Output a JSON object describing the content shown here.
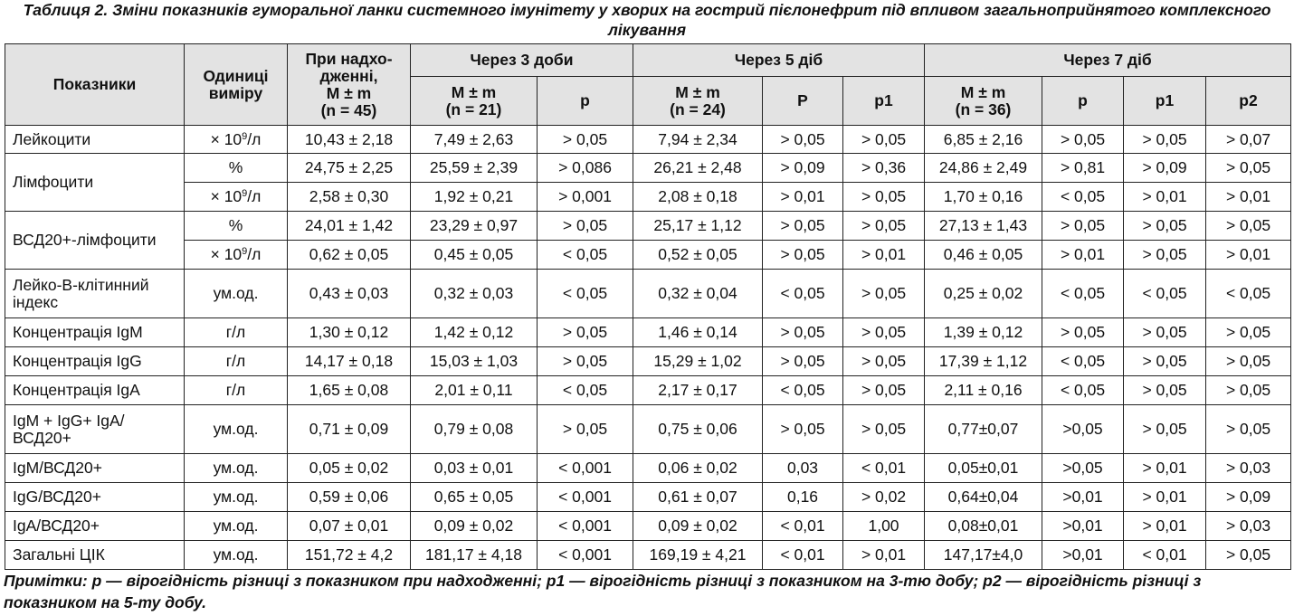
{
  "caption": "Таблиця 2. Зміни показників гуморальної ланки системного імунітету у хворих на гострий пієлонефрит під впливом загальноприйнятого комплексного лікування",
  "header": {
    "indicator": "Показники",
    "unit": "Одиниці виміру",
    "admission_line1": "При надхо-",
    "admission_line2": "дженні,",
    "admission_line3": "M ± m",
    "admission_line4": "(n = 45)",
    "day3": "Через 3 доби",
    "day5": "Через 5 діб",
    "day7": "Через 7 діб",
    "day3_mm": "M ± m",
    "day3_n": "(n = 21)",
    "day3_p": "p",
    "day5_mm": "M ± m",
    "day5_n": "(n = 24)",
    "day5_p": "P",
    "day5_p1": "p1",
    "day7_mm": "M ± m",
    "day7_n": "(n = 36)",
    "day7_p": "p",
    "day7_p1": "p1",
    "day7_p2": "p2"
  },
  "units": {
    "x109l_prefix": "× 10",
    "x109l_exp": "9",
    "x109l_suffix": "/л"
  },
  "rows": [
    {
      "name": "Лейкоцити",
      "unit": "",
      "adm": "10,43 ± 2,18",
      "d3": "7,49 ± 2,63",
      "d3p": "> 0,05",
      "d5": "7,94 ± 2,34",
      "d5p": "> 0,05",
      "d5p1": "> 0,05",
      "d7": "6,85 ± 2,16",
      "d7p": "> 0,05",
      "d7p1": "> 0,05",
      "d7p2": "> 0,07"
    },
    {
      "name": "Лімфоцити",
      "unit": "%",
      "adm": "24,75 ± 2,25",
      "d3": "25,59 ± 2,39",
      "d3p": "> 0,086",
      "d5": "26,21 ± 2,48",
      "d5p": "> 0,09",
      "d5p1": "> 0,36",
      "d7": "24,86 ± 2,49",
      "d7p": "> 0,81",
      "d7p1": "> 0,09",
      "d7p2": "> 0,05"
    },
    {
      "name": "",
      "unit": "",
      "adm": "2,58 ± 0,30",
      "d3": "1,92 ± 0,21",
      "d3p": "> 0,001",
      "d5": "2,08 ± 0,18",
      "d5p": "> 0,01",
      "d5p1": "> 0,05",
      "d7": "1,70 ± 0,16",
      "d7p": "< 0,05",
      "d7p1": "> 0,01",
      "d7p2": "> 0,01"
    },
    {
      "name": "ВСД20+-лімфоцити",
      "unit": "%",
      "adm": "24,01 ± 1,42",
      "d3": "23,29 ± 0,97",
      "d3p": "> 0,05",
      "d5": "25,17 ± 1,12",
      "d5p": "> 0,05",
      "d5p1": "> 0,05",
      "d7": "27,13 ± 1,43",
      "d7p": "> 0,05",
      "d7p1": "> 0,05",
      "d7p2": "> 0,05"
    },
    {
      "name": "",
      "unit": "",
      "adm": "0,62 ± 0,05",
      "d3": "0,45 ± 0,05",
      "d3p": "< 0,05",
      "d5": "0,52 ± 0,05",
      "d5p": "> 0,05",
      "d5p1": "> 0,01",
      "d7": "0,46 ± 0,05",
      "d7p": "> 0,01",
      "d7p1": "> 0,05",
      "d7p2": "> 0,01"
    },
    {
      "name": "Лейко-В-клітинний індекс",
      "unit": "ум.од.",
      "adm": "0,43 ± 0,03",
      "d3": "0,32 ± 0,03",
      "d3p": "< 0,05",
      "d5": "0,32 ± 0,04",
      "d5p": "< 0,05",
      "d5p1": "> 0,05",
      "d7": "0,25 ± 0,02",
      "d7p": "< 0,05",
      "d7p1": "< 0,05",
      "d7p2": "< 0,05"
    },
    {
      "name": "Концентрація IgM",
      "unit": "г/л",
      "adm": "1,30 ± 0,12",
      "d3": "1,42 ± 0,12",
      "d3p": "> 0,05",
      "d5": "1,46 ± 0,14",
      "d5p": "> 0,05",
      "d5p1": "> 0,05",
      "d7": "1,39 ± 0,12",
      "d7p": "> 0,05",
      "d7p1": "> 0,05",
      "d7p2": "> 0,05"
    },
    {
      "name": "Концентрація IgG",
      "unit": "г/л",
      "adm": "14,17 ± 0,18",
      "d3": "15,03 ± 1,03",
      "d3p": "> 0,05",
      "d5": "15,29 ± 1,02",
      "d5p": "> 0,05",
      "d5p1": "> 0,05",
      "d7": "17,39 ± 1,12",
      "d7p": "< 0,05",
      "d7p1": "> 0,05",
      "d7p2": "> 0,05"
    },
    {
      "name": "Концентрація IgA",
      "unit": "г/л",
      "adm": "1,65 ± 0,08",
      "d3": "2,01 ± 0,11",
      "d3p": "< 0,05",
      "d5": "2,17 ± 0,17",
      "d5p": "< 0,05",
      "d5p1": "> 0,05",
      "d7": "2,11 ± 0,16",
      "d7p": "< 0,05",
      "d7p1": "> 0,05",
      "d7p2": "> 0,05"
    },
    {
      "name": "IgM + IgG+ IgA/ ВСД20+",
      "unit": "ум.од.",
      "adm": "0,71 ± 0,09",
      "d3": "0,79 ± 0,08",
      "d3p": "> 0,05",
      "d5": "0,75 ± 0,06",
      "d5p": "> 0,05",
      "d5p1": "> 0,05",
      "d7": "0,77±0,07",
      "d7p": ">0,05",
      "d7p1": "> 0,05",
      "d7p2": "> 0,05"
    },
    {
      "name": "IgM/ВСД20+",
      "unit": "ум.од.",
      "adm": "0,05 ± 0,02",
      "d3": "0,03 ± 0,01",
      "d3p": "< 0,001",
      "d5": "0,06 ± 0,02",
      "d5p": "0,03",
      "d5p1": "< 0,01",
      "d7": "0,05±0,01",
      "d7p": ">0,05",
      "d7p1": "> 0,01",
      "d7p2": "> 0,03"
    },
    {
      "name": "IgG/ВСД20+",
      "unit": "ум.од.",
      "adm": "0,59 ± 0,06",
      "d3": "0,65 ± 0,05",
      "d3p": "< 0,001",
      "d5": "0,61 ± 0,07",
      "d5p": "0,16",
      "d5p1": "> 0,02",
      "d7": "0,64±0,04",
      "d7p": ">0,01",
      "d7p1": "> 0,01",
      "d7p2": "> 0,09"
    },
    {
      "name": "IgA/ВСД20+",
      "unit": "ум.од.",
      "adm": "0,07 ± 0,01",
      "d3": "0,09 ± 0,02",
      "d3p": "< 0,001",
      "d5": "0,09 ± 0,02",
      "d5p": "< 0,01",
      "d5p1": "1,00",
      "d7": "0,08±0,01",
      "d7p": ">0,01",
      "d7p1": "> 0,01",
      "d7p2": "> 0,03"
    },
    {
      "name": "Загальні ЦІК",
      "unit": "ум.од.",
      "adm": "151,72 ± 4,2",
      "d3": "181,17 ± 4,18",
      "d3p": "< 0,001",
      "d5": "169,19 ± 4,21",
      "d5p": "< 0,01",
      "d5p1": "> 0,01",
      "d7": "147,17±4,0",
      "d7p": ">0,01",
      "d7p1": "< 0,01",
      "d7p2": "> 0,05"
    }
  ],
  "note": "Примітки: p — вірогідність різниці з показником при надходженні; p1 — вірогідність різниці з показником на 3-тю добу; p2 — вірогідність різниці з показником на 5-ту добу."
}
